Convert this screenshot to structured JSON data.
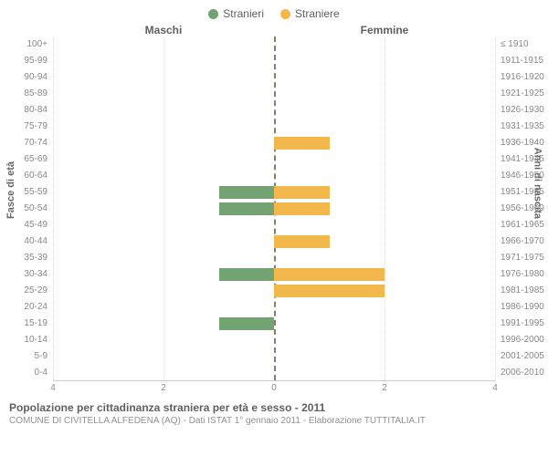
{
  "legend": [
    {
      "label": "Stranieri",
      "color": "#73a373"
    },
    {
      "label": "Straniere",
      "color": "#f2b84b"
    }
  ],
  "header_left": "Maschi",
  "header_right": "Femmine",
  "y_axis_left_title": "Fasce di età",
  "y_axis_right_title": "Anni di nascita",
  "chart": {
    "type": "diverging-bar",
    "x_max_each_side": 4,
    "x_ticks": [
      4,
      2,
      0,
      2,
      4
    ],
    "male_color": "#73a373",
    "female_color": "#f2b84b",
    "grid_color": "#dddddd",
    "center_color": "#808066",
    "rows": [
      {
        "age": "100+",
        "birth": "≤ 1910",
        "male": 0,
        "female": 0
      },
      {
        "age": "95-99",
        "birth": "1911-1915",
        "male": 0,
        "female": 0
      },
      {
        "age": "90-94",
        "birth": "1916-1920",
        "male": 0,
        "female": 0
      },
      {
        "age": "85-89",
        "birth": "1921-1925",
        "male": 0,
        "female": 0
      },
      {
        "age": "80-84",
        "birth": "1926-1930",
        "male": 0,
        "female": 0
      },
      {
        "age": "75-79",
        "birth": "1931-1935",
        "male": 0,
        "female": 0
      },
      {
        "age": "70-74",
        "birth": "1936-1940",
        "male": 0,
        "female": 1
      },
      {
        "age": "65-69",
        "birth": "1941-1945",
        "male": 0,
        "female": 0
      },
      {
        "age": "60-64",
        "birth": "1946-1950",
        "male": 0,
        "female": 0
      },
      {
        "age": "55-59",
        "birth": "1951-1955",
        "male": 1,
        "female": 1
      },
      {
        "age": "50-54",
        "birth": "1956-1960",
        "male": 1,
        "female": 1
      },
      {
        "age": "45-49",
        "birth": "1961-1965",
        "male": 0,
        "female": 0
      },
      {
        "age": "40-44",
        "birth": "1966-1970",
        "male": 0,
        "female": 1
      },
      {
        "age": "35-39",
        "birth": "1971-1975",
        "male": 0,
        "female": 0
      },
      {
        "age": "30-34",
        "birth": "1976-1980",
        "male": 1,
        "female": 2
      },
      {
        "age": "25-29",
        "birth": "1981-1985",
        "male": 0,
        "female": 2
      },
      {
        "age": "20-24",
        "birth": "1986-1990",
        "male": 0,
        "female": 0
      },
      {
        "age": "15-19",
        "birth": "1991-1995",
        "male": 1,
        "female": 0
      },
      {
        "age": "10-14",
        "birth": "1996-2000",
        "male": 0,
        "female": 0
      },
      {
        "age": "5-9",
        "birth": "2001-2005",
        "male": 0,
        "female": 0
      },
      {
        "age": "0-4",
        "birth": "2006-2010",
        "male": 0,
        "female": 0
      }
    ]
  },
  "footer": {
    "title": "Popolazione per cittadinanza straniera per età e sesso - 2011",
    "sub": "COMUNE DI CIVITELLA ALFEDENA (AQ) - Dati ISTAT 1° gennaio 2011 - Elaborazione TUTTITALIA.IT"
  }
}
